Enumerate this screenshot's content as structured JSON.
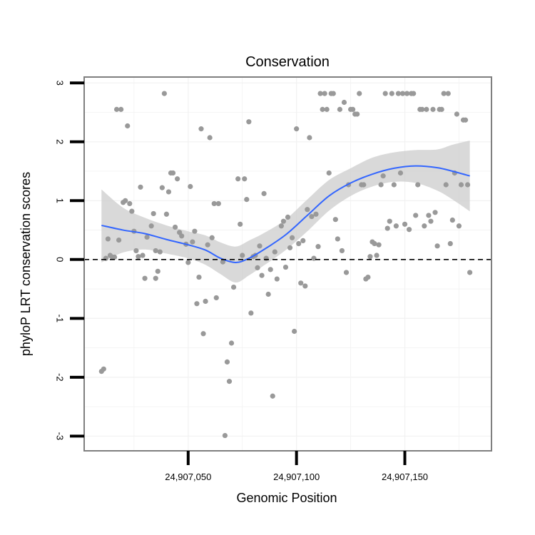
{
  "chart_data": {
    "type": "scatter",
    "title": "Conservation",
    "xlabel": "Genomic Position",
    "ylabel": "phyloP LRT conservation scores",
    "xlim": [
      24907002,
      24907190
    ],
    "ylim": [
      -3.25,
      3.1
    ],
    "x_ticks": [
      24907050,
      24907100,
      24907150
    ],
    "x_tick_labels": [
      "24,907,050",
      "24,907,100",
      "24,907,150"
    ],
    "y_ticks": [
      -3,
      -2,
      -1,
      0,
      1,
      2,
      3
    ],
    "y_tick_labels": [
      "-3",
      "-2",
      "-1",
      "0",
      "1",
      "2",
      "3"
    ],
    "grid": true,
    "reference_line": {
      "y": 0,
      "style": "dashed"
    },
    "colors": {
      "points": "#999999",
      "smooth": "#3366ff",
      "band": "#cccccc",
      "panel_border": "#7f7f7f",
      "grid": "#f2f2f2"
    },
    "points": [
      [
        24907010,
        -1.9
      ],
      [
        24907011,
        -1.86
      ],
      [
        24907012,
        0.02
      ],
      [
        24907013,
        0.35
      ],
      [
        24907014,
        0.07
      ],
      [
        24907015,
        0.04
      ],
      [
        24907016,
        0.04
      ],
      [
        24907017,
        2.55
      ],
      [
        24907018,
        0.33
      ],
      [
        24907019,
        2.55
      ],
      [
        24907020,
        0.97
      ],
      [
        24907021,
        1.0
      ],
      [
        24907022,
        2.27
      ],
      [
        24907023,
        0.95
      ],
      [
        24907024,
        0.82
      ],
      [
        24907025,
        0.48
      ],
      [
        24907026,
        0.15
      ],
      [
        24907027,
        0.05
      ],
      [
        24907028,
        1.23
      ],
      [
        24907029,
        0.07
      ],
      [
        24907030,
        -0.32
      ],
      [
        24907031,
        0.38
      ],
      [
        24907033,
        0.57
      ],
      [
        24907034,
        0.78
      ],
      [
        24907035,
        0.15
      ],
      [
        24907035,
        -0.32
      ],
      [
        24907036,
        -0.2
      ],
      [
        24907037,
        0.13
      ],
      [
        24907038,
        1.22
      ],
      [
        24907039,
        2.82
      ],
      [
        24907040,
        0.77
      ],
      [
        24907041,
        1.15
      ],
      [
        24907042,
        1.47
      ],
      [
        24907043,
        1.47
      ],
      [
        24907044,
        0.55
      ],
      [
        24907045,
        1.37
      ],
      [
        24907046,
        0.46
      ],
      [
        24907047,
        0.4
      ],
      [
        24907049,
        0.26
      ],
      [
        24907050,
        -0.05
      ],
      [
        24907051,
        1.24
      ],
      [
        24907052,
        0.3
      ],
      [
        24907053,
        0.48
      ],
      [
        24907054,
        -0.75
      ],
      [
        24907055,
        -0.3
      ],
      [
        24907056,
        2.22
      ],
      [
        24907057,
        -1.26
      ],
      [
        24907058,
        -0.71
      ],
      [
        24907059,
        0.25
      ],
      [
        24907060,
        2.07
      ],
      [
        24907061,
        0.37
      ],
      [
        24907062,
        0.95
      ],
      [
        24907063,
        -0.65
      ],
      [
        24907064,
        0.95
      ],
      [
        24907066,
        -0.04
      ],
      [
        24907067,
        -2.99
      ],
      [
        24907068,
        -1.74
      ],
      [
        24907069,
        -2.07
      ],
      [
        24907070,
        -1.42
      ],
      [
        24907071,
        -0.47
      ],
      [
        24907073,
        1.37
      ],
      [
        24907074,
        0.6
      ],
      [
        24907075,
        0.07
      ],
      [
        24907076,
        1.37
      ],
      [
        24907077,
        1.02
      ],
      [
        24907078,
        2.34
      ],
      [
        24907079,
        -0.91
      ],
      [
        24907080,
        0.05
      ],
      [
        24907081,
        0.07
      ],
      [
        24907082,
        -0.14
      ],
      [
        24907083,
        0.23
      ],
      [
        24907084,
        -0.27
      ],
      [
        24907085,
        1.12
      ],
      [
        24907086,
        0.02
      ],
      [
        24907087,
        -0.59
      ],
      [
        24907088,
        -0.17
      ],
      [
        24907089,
        -2.32
      ],
      [
        24907090,
        0.13
      ],
      [
        24907091,
        -0.33
      ],
      [
        24907093,
        0.57
      ],
      [
        24907094,
        0.65
      ],
      [
        24907095,
        -0.13
      ],
      [
        24907096,
        0.72
      ],
      [
        24907097,
        0.2
      ],
      [
        24907098,
        0.37
      ],
      [
        24907099,
        -1.22
      ],
      [
        24907100,
        2.22
      ],
      [
        24907101,
        0.27
      ],
      [
        24907102,
        -0.4
      ],
      [
        24907103,
        0.32
      ],
      [
        24907104,
        -0.45
      ],
      [
        24907105,
        0.85
      ],
      [
        24907106,
        2.07
      ],
      [
        24907107,
        0.73
      ],
      [
        24907108,
        0.02
      ],
      [
        24907109,
        0.77
      ],
      [
        24907110,
        0.22
      ],
      [
        24907111,
        2.82
      ],
      [
        24907112,
        2.55
      ],
      [
        24907113,
        2.82
      ],
      [
        24907114,
        2.55
      ],
      [
        24907115,
        1.47
      ],
      [
        24907116,
        2.82
      ],
      [
        24907117,
        2.82
      ],
      [
        24907118,
        0.68
      ],
      [
        24907119,
        0.35
      ],
      [
        24907120,
        2.55
      ],
      [
        24907121,
        0.15
      ],
      [
        24907122,
        2.67
      ],
      [
        24907123,
        -0.22
      ],
      [
        24907124,
        1.27
      ],
      [
        24907125,
        2.55
      ],
      [
        24907126,
        2.55
      ],
      [
        24907127,
        2.47
      ],
      [
        24907128,
        2.47
      ],
      [
        24907129,
        2.82
      ],
      [
        24907130,
        1.27
      ],
      [
        24907131,
        1.27
      ],
      [
        24907132,
        -0.33
      ],
      [
        24907133,
        -0.3
      ],
      [
        24907134,
        0.05
      ],
      [
        24907135,
        0.3
      ],
      [
        24907136,
        0.27
      ],
      [
        24907137,
        0.07
      ],
      [
        24907138,
        0.25
      ],
      [
        24907139,
        1.27
      ],
      [
        24907140,
        1.42
      ],
      [
        24907141,
        2.82
      ],
      [
        24907142,
        0.53
      ],
      [
        24907143,
        0.65
      ],
      [
        24907144,
        2.82
      ],
      [
        24907145,
        1.27
      ],
      [
        24907146,
        0.57
      ],
      [
        24907147,
        2.82
      ],
      [
        24907148,
        1.47
      ],
      [
        24907149,
        2.82
      ],
      [
        24907150,
        0.6
      ],
      [
        24907151,
        2.82
      ],
      [
        24907152,
        0.51
      ],
      [
        24907153,
        2.82
      ],
      [
        24907154,
        2.82
      ],
      [
        24907155,
        0.75
      ],
      [
        24907156,
        1.27
      ],
      [
        24907157,
        2.55
      ],
      [
        24907158,
        2.55
      ],
      [
        24907159,
        0.57
      ],
      [
        24907160,
        2.55
      ],
      [
        24907161,
        0.75
      ],
      [
        24907162,
        0.65
      ],
      [
        24907163,
        2.55
      ],
      [
        24907164,
        0.8
      ],
      [
        24907165,
        0.23
      ],
      [
        24907166,
        2.55
      ],
      [
        24907167,
        2.55
      ],
      [
        24907168,
        2.82
      ],
      [
        24907169,
        1.27
      ],
      [
        24907170,
        2.82
      ],
      [
        24907171,
        0.27
      ],
      [
        24907172,
        0.67
      ],
      [
        24907173,
        1.47
      ],
      [
        24907174,
        2.47
      ],
      [
        24907175,
        0.57
      ],
      [
        24907176,
        1.27
      ],
      [
        24907177,
        2.37
      ],
      [
        24907178,
        2.37
      ],
      [
        24907179,
        1.27
      ],
      [
        24907180,
        -0.22
      ]
    ],
    "smooth": [
      {
        "x": 24907010,
        "y": 0.58,
        "lo": -0.05,
        "hi": 1.19
      },
      {
        "x": 24907020,
        "y": 0.5,
        "lo": 0.12,
        "hi": 0.88
      },
      {
        "x": 24907030,
        "y": 0.44,
        "lo": 0.17,
        "hi": 0.71
      },
      {
        "x": 24907040,
        "y": 0.34,
        "lo": 0.1,
        "hi": 0.58
      },
      {
        "x": 24907050,
        "y": 0.25,
        "lo": 0.02,
        "hi": 0.48
      },
      {
        "x": 24907058,
        "y": 0.16,
        "lo": -0.09,
        "hi": 0.41
      },
      {
        "x": 24907065,
        "y": 0.02,
        "lo": -0.25,
        "hi": 0.29
      },
      {
        "x": 24907072,
        "y": -0.05,
        "lo": -0.39,
        "hi": 0.22
      },
      {
        "x": 24907078,
        "y": 0.02,
        "lo": -0.27,
        "hi": 0.32
      },
      {
        "x": 24907085,
        "y": 0.17,
        "lo": -0.1,
        "hi": 0.45
      },
      {
        "x": 24907095,
        "y": 0.42,
        "lo": 0.16,
        "hi": 0.68
      },
      {
        "x": 24907105,
        "y": 0.75,
        "lo": 0.48,
        "hi": 1.02
      },
      {
        "x": 24907115,
        "y": 1.08,
        "lo": 0.83,
        "hi": 1.35
      },
      {
        "x": 24907125,
        "y": 1.3,
        "lo": 1.08,
        "hi": 1.55
      },
      {
        "x": 24907135,
        "y": 1.45,
        "lo": 1.24,
        "hi": 1.73
      },
      {
        "x": 24907145,
        "y": 1.55,
        "lo": 1.32,
        "hi": 1.82
      },
      {
        "x": 24907155,
        "y": 1.59,
        "lo": 1.3,
        "hi": 1.86
      },
      {
        "x": 24907165,
        "y": 1.56,
        "lo": 1.17,
        "hi": 1.87
      },
      {
        "x": 24907172,
        "y": 1.5,
        "lo": 1.02,
        "hi": 1.95
      },
      {
        "x": 24907180,
        "y": 1.42,
        "lo": 0.82,
        "hi": 2.02
      }
    ]
  }
}
